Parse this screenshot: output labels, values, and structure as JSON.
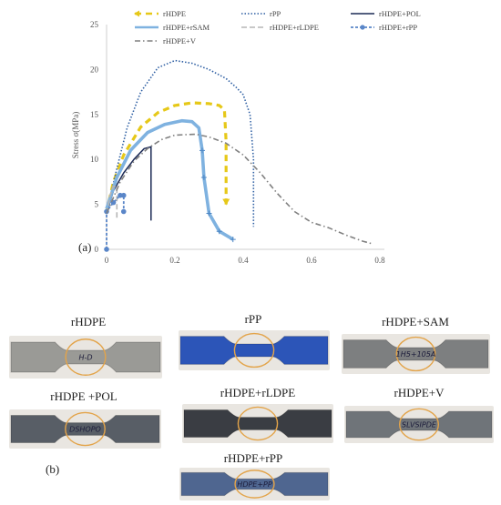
{
  "chart_data": {
    "type": "line",
    "xlabel": "Strain ε",
    "ylabel": "Stress σ(MPa)",
    "xlim": [
      0,
      0.8
    ],
    "ylim": [
      0,
      25
    ],
    "xticks": [
      0,
      0.2,
      0.4,
      0.6,
      0.8
    ],
    "xtick_labels": [
      "0",
      "0.2",
      "0.4",
      "0.6",
      "0.8"
    ],
    "yticks": [
      0,
      5,
      10,
      15,
      20,
      25
    ],
    "ytick_labels": [
      "0",
      "5",
      "10",
      "15",
      "20",
      "25"
    ],
    "legend_position": "top",
    "series": [
      {
        "name": "rHDPE",
        "color": "#e6c818",
        "style": "dash-arrow",
        "points": [
          [
            0,
            4.2
          ],
          [
            0.02,
            7.5
          ],
          [
            0.05,
            10.5
          ],
          [
            0.1,
            13.6
          ],
          [
            0.15,
            15.2
          ],
          [
            0.2,
            16.0
          ],
          [
            0.25,
            16.3
          ],
          [
            0.3,
            16.2
          ],
          [
            0.33,
            16.0
          ],
          [
            0.345,
            15.5
          ],
          [
            0.35,
            12
          ],
          [
            0.35,
            8
          ],
          [
            0.35,
            5
          ]
        ]
      },
      {
        "name": "rPP",
        "color": "#2e5fa3",
        "style": "dotted",
        "points": [
          [
            0,
            4
          ],
          [
            0.03,
            9
          ],
          [
            0.06,
            13.5
          ],
          [
            0.1,
            17.5
          ],
          [
            0.15,
            20.2
          ],
          [
            0.2,
            21.0
          ],
          [
            0.25,
            20.7
          ],
          [
            0.3,
            20.0
          ],
          [
            0.35,
            19.0
          ],
          [
            0.38,
            18.0
          ],
          [
            0.4,
            17.2
          ],
          [
            0.42,
            15
          ],
          [
            0.43,
            10
          ],
          [
            0.43,
            2.5
          ]
        ]
      },
      {
        "name": "rHDPE+POL",
        "color": "#1c2a55",
        "style": "solid",
        "points": [
          [
            0,
            4
          ],
          [
            0.02,
            6.5
          ],
          [
            0.05,
            8.5
          ],
          [
            0.08,
            10
          ],
          [
            0.11,
            11.2
          ],
          [
            0.13,
            11.4
          ],
          [
            0.13,
            9
          ],
          [
            0.13,
            3.2
          ]
        ]
      },
      {
        "name": "rHDPE+rSAM",
        "color": "#7fb2e0",
        "style": "plus",
        "points": [
          [
            0,
            4.5
          ],
          [
            0.03,
            8
          ],
          [
            0.07,
            11
          ],
          [
            0.12,
            13
          ],
          [
            0.17,
            13.9
          ],
          [
            0.22,
            14.3
          ],
          [
            0.25,
            14.2
          ],
          [
            0.27,
            13.5
          ],
          [
            0.28,
            11
          ],
          [
            0.285,
            8
          ],
          [
            0.3,
            4
          ],
          [
            0.33,
            2
          ],
          [
            0.37,
            1.1
          ]
        ]
      },
      {
        "name": "rHDPE+rLDPE",
        "color": "#b5b5b5",
        "style": "long-dash",
        "points": [
          [
            0,
            4
          ],
          [
            0.01,
            6
          ],
          [
            0.02,
            7
          ],
          [
            0.03,
            7
          ],
          [
            0.03,
            3.5
          ]
        ]
      },
      {
        "name": "rHDPE+rPP",
        "color": "#5a86c8",
        "style": "marker",
        "points": [
          [
            0,
            0
          ],
          [
            0,
            4.2
          ],
          [
            0.02,
            5.2
          ],
          [
            0.04,
            6
          ],
          [
            0.05,
            6
          ],
          [
            0.05,
            4.2
          ]
        ]
      },
      {
        "name": "rHDPE+V",
        "color": "#808080",
        "style": "dash-dot",
        "points": [
          [
            0,
            4
          ],
          [
            0.04,
            7.5
          ],
          [
            0.08,
            9.8
          ],
          [
            0.12,
            11.2
          ],
          [
            0.16,
            12.2
          ],
          [
            0.2,
            12.7
          ],
          [
            0.26,
            12.8
          ],
          [
            0.3,
            12.5
          ],
          [
            0.35,
            11.8
          ],
          [
            0.4,
            10.5
          ],
          [
            0.45,
            8.5
          ],
          [
            0.5,
            6.2
          ],
          [
            0.55,
            4.2
          ],
          [
            0.6,
            3.0
          ],
          [
            0.65,
            2.4
          ],
          [
            0.7,
            1.6
          ],
          [
            0.75,
            0.9
          ],
          [
            0.78,
            0.6
          ]
        ]
      }
    ]
  },
  "figure": {
    "panel_a": "(a)",
    "panel_b": "(b)"
  },
  "photos": [
    {
      "label": "rHDPE",
      "specimen_color": "#9a9a96",
      "mark": "H-D"
    },
    {
      "label": "rPP",
      "specimen_color": "#2c55b8",
      "mark": ""
    },
    {
      "label": "rHDPE+SAM",
      "specimen_color": "#7d7f80",
      "mark": "1H5+105A"
    },
    {
      "label": "rHDPE +POL",
      "specimen_color": "#585e66",
      "mark": "DSHOPO"
    },
    {
      "label": "rHDPE+rLDPE",
      "specimen_color": "#3a3d43",
      "mark": ""
    },
    {
      "label": "rHDPE+V",
      "specimen_color": "#6f7479",
      "mark": "SLVSIPDE"
    },
    {
      "label": "rHDPE+rPP",
      "specimen_color": "#4f6690",
      "mark": "HDPE+PP"
    }
  ]
}
